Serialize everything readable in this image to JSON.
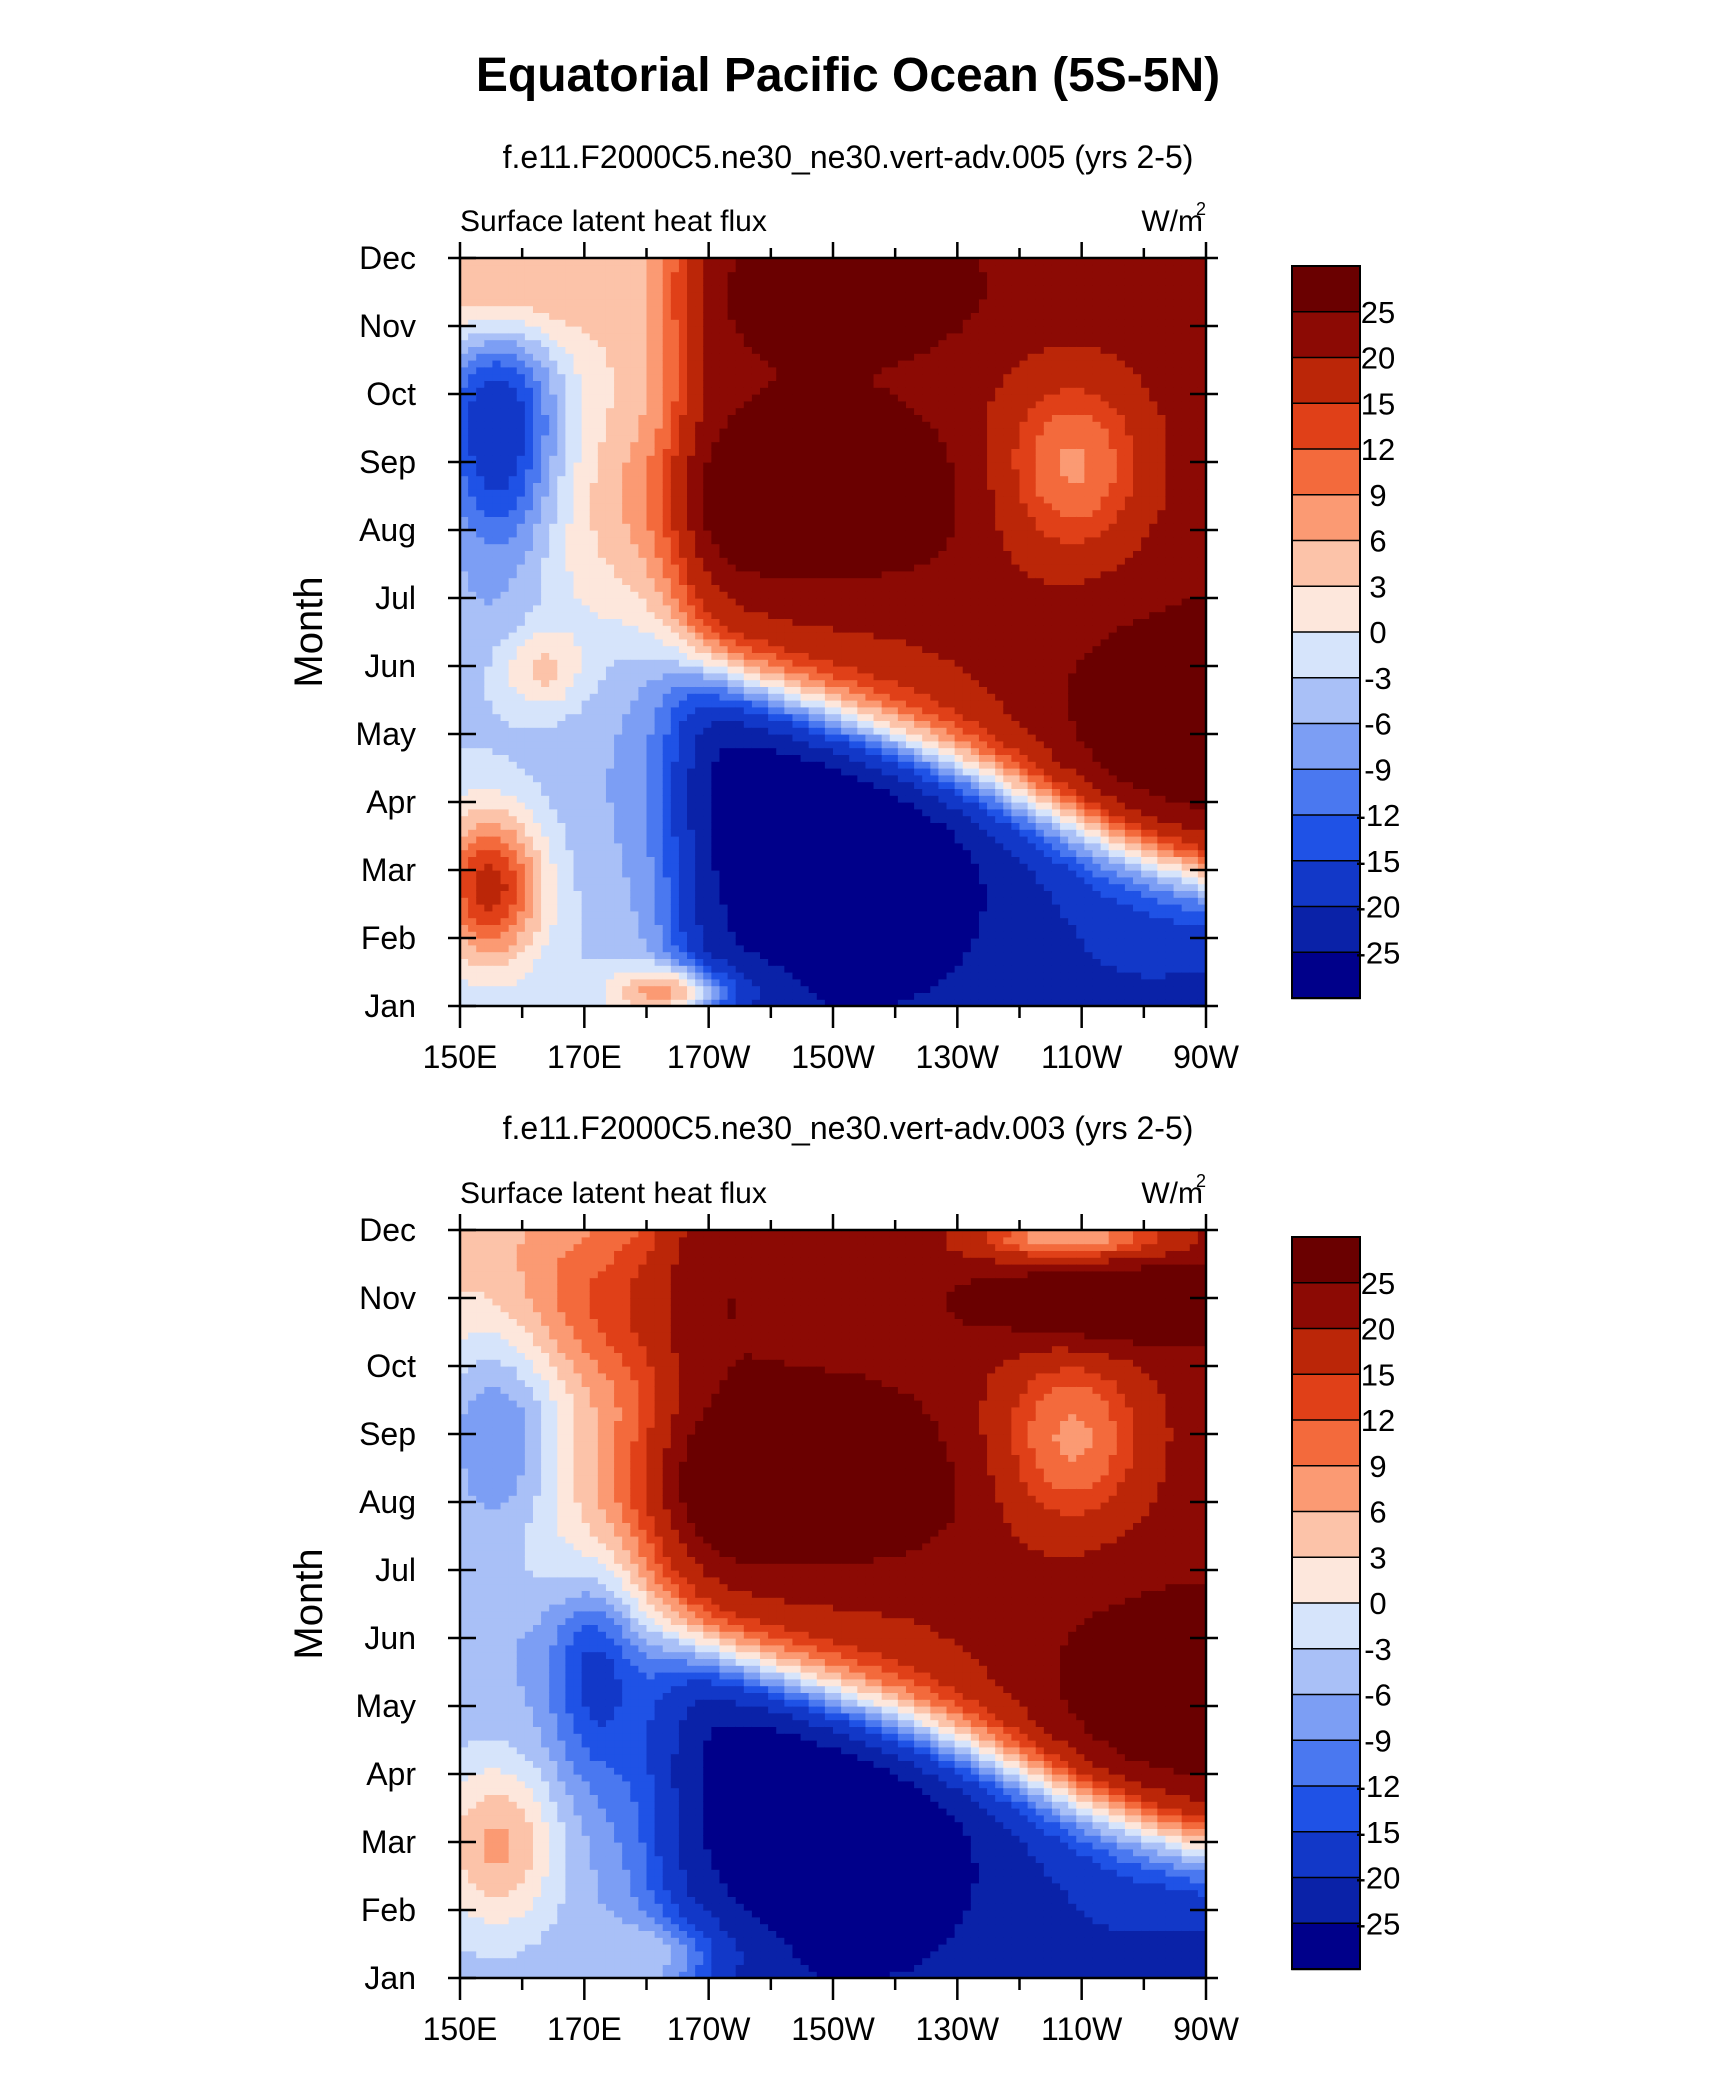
{
  "title": "Equatorial Pacific Ocean (5S-5N)",
  "chart_data": [
    {
      "type": "heatmap",
      "subtitle": "f.e11.F2000C5.ne30_ne30.vert-adv.005 (yrs 2-5)",
      "left_label": "Surface latent heat flux",
      "right_label": "W/m",
      "right_label_sup": "2",
      "ylabel": "Month",
      "xlabel": "",
      "x_ticks": [
        "150E",
        "170E",
        "170W",
        "150W",
        "130W",
        "110W",
        "90W"
      ],
      "y_ticks": [
        "Jan",
        "Feb",
        "Mar",
        "Apr",
        "May",
        "Jun",
        "Jul",
        "Aug",
        "Sep",
        "Oct",
        "Nov",
        "Dec"
      ],
      "colorbar_labels": [
        "25",
        "20",
        "15",
        "12",
        "9",
        "6",
        "3",
        "0",
        "-3",
        "-6",
        "-9",
        "-12",
        "-15",
        "-20",
        "-25"
      ],
      "levels": [
        -25,
        -20,
        -15,
        -12,
        -9,
        -6,
        -3,
        0,
        3,
        6,
        9,
        12,
        15,
        20,
        25
      ],
      "colors": [
        "#00008a",
        "#0a22a8",
        "#1238c8",
        "#1f52e6",
        "#4a78f0",
        "#7c9ef4",
        "#a9c0f7",
        "#d6e4fb",
        "#fde7dc",
        "#fcc3a9",
        "#fb9a73",
        "#f36a3c",
        "#e04018",
        "#bb2608",
        "#8c0a04",
        "#6a0000"
      ],
      "model": "run005"
    },
    {
      "type": "heatmap",
      "subtitle": "f.e11.F2000C5.ne30_ne30.vert-adv.003 (yrs 2-5)",
      "left_label": "Surface latent heat flux",
      "right_label": "W/m",
      "right_label_sup": "2",
      "ylabel": "Month",
      "xlabel": "",
      "x_ticks": [
        "150E",
        "170E",
        "170W",
        "150W",
        "130W",
        "110W",
        "90W"
      ],
      "y_ticks": [
        "Jan",
        "Feb",
        "Mar",
        "Apr",
        "May",
        "Jun",
        "Jul",
        "Aug",
        "Sep",
        "Oct",
        "Nov",
        "Dec"
      ],
      "colorbar_labels": [
        "25",
        "20",
        "15",
        "12",
        "9",
        "6",
        "3",
        "0",
        "-3",
        "-6",
        "-9",
        "-12",
        "-15",
        "-20",
        "-25"
      ],
      "levels": [
        -25,
        -20,
        -15,
        -12,
        -9,
        -6,
        -3,
        0,
        3,
        6,
        9,
        12,
        15,
        20,
        25
      ],
      "colors": [
        "#00008a",
        "#0a22a8",
        "#1238c8",
        "#1f52e6",
        "#4a78f0",
        "#7c9ef4",
        "#a9c0f7",
        "#d6e4fb",
        "#fde7dc",
        "#fcc3a9",
        "#fb9a73",
        "#f36a3c",
        "#e04018",
        "#bb2608",
        "#8c0a04",
        "#6a0000"
      ],
      "model": "run003"
    }
  ]
}
